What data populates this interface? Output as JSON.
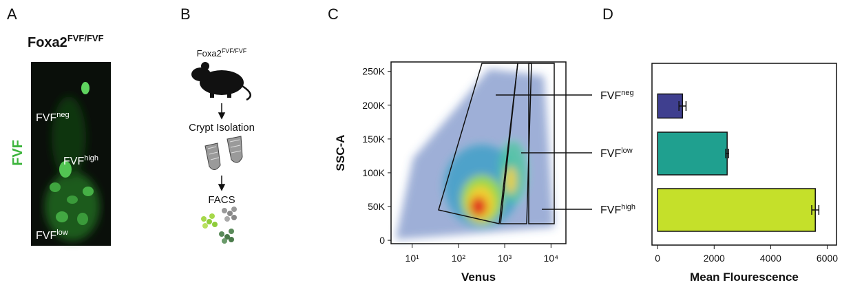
{
  "panel_a": {
    "label": "A",
    "title": {
      "text": "Foxa2",
      "sup": "FVF/FVF"
    },
    "side_label": "FVF",
    "cells": [
      {
        "text": "FVF",
        "sup": "neg"
      },
      {
        "text": "FVF",
        "sup": "high"
      },
      {
        "text": "FVF",
        "sup": "low"
      }
    ]
  },
  "panel_b": {
    "label": "B",
    "mouse": {
      "text": "Foxa2",
      "sup": "FVF/FVF"
    },
    "steps": [
      "Crypt Isolation",
      "FACS"
    ]
  },
  "panel_c": {
    "label": "C"
  },
  "panel_d": {
    "label": "D"
  },
  "chart_data": [
    {
      "type": "density",
      "x_label": "Venus",
      "y_label": "SSC-A",
      "x_log": true,
      "xlim": [
        3.5,
        21000
      ],
      "xticks": [
        {
          "value": 10,
          "label": "10¹"
        },
        {
          "value": 100,
          "label": "10²"
        },
        {
          "value": 1000,
          "label": "10³"
        },
        {
          "value": 10000,
          "label": "10⁴"
        }
      ],
      "ylim": [
        -5000,
        264000
      ],
      "yticks": [
        0,
        {
          "value": 50000,
          "label": "50K"
        },
        {
          "value": 100000,
          "label": "100K"
        },
        {
          "value": 150000,
          "label": "150K"
        },
        {
          "value": 200000,
          "label": "200K"
        },
        {
          "value": 250000,
          "label": "250K"
        }
      ]
    },
    {
      "type": "bar",
      "orientation": "horizontal",
      "x_label": "Mean Flourescence",
      "categories": [
        {
          "text": "FVF",
          "sup": "neg"
        },
        {
          "text": "FVF",
          "sup": "low"
        },
        {
          "text": "FVF",
          "sup": "high"
        }
      ],
      "values": [
        880,
        2460,
        5580
      ],
      "errors": [
        125,
        50,
        125
      ],
      "colors": [
        "#3f3f8f",
        "#1fa08f",
        "#c5e02a"
      ],
      "xlim": [
        -200,
        6330
      ],
      "xticks": [
        0,
        2000,
        4000,
        6000
      ]
    }
  ]
}
